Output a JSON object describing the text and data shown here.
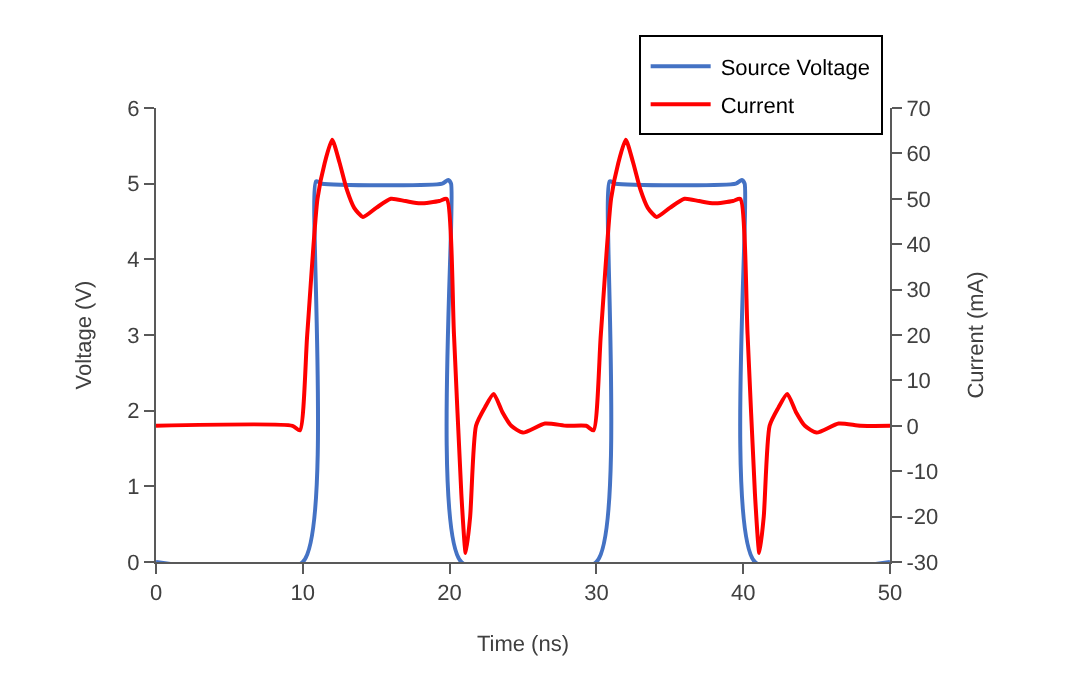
{
  "chart_data": {
    "type": "line",
    "xlabel": "Time (ns)",
    "ylabel": "Voltage (V)",
    "y2label": "Current (mA)",
    "xlim": [
      0,
      50
    ],
    "xticks": [
      0,
      10,
      20,
      30,
      40,
      50
    ],
    "ylim": [
      0,
      6
    ],
    "yticks": [
      0,
      1,
      2,
      3,
      4,
      5,
      6
    ],
    "y2lim": [
      -30,
      70
    ],
    "y2ticks": [
      -30,
      -20,
      -10,
      0,
      10,
      20,
      30,
      40,
      50,
      60,
      70
    ],
    "legend": "top right",
    "marker": "none",
    "line_style": "solid",
    "series": [
      {
        "name": "Source Voltage",
        "color": "#4472c4",
        "x": [
          0,
          10,
          10.9,
          11.3,
          19.5,
          19.9,
          20.1,
          20.8,
          30,
          30.9,
          31.3,
          39.5,
          39.9,
          40.1,
          40.8,
          50
        ],
        "values": [
          0,
          0,
          5.03,
          5.0,
          5.0,
          5.05,
          5.0,
          0,
          0,
          5.03,
          5.0,
          5.0,
          5.05,
          5.0,
          0,
          0
        ]
      },
      {
        "name": "Current",
        "color": "#ff0000",
        "axis": "y2",
        "x": [
          0,
          9.3,
          9.8,
          10.3,
          11,
          11.5,
          12,
          12.5,
          13,
          13.5,
          14.1,
          15,
          16,
          17,
          18,
          19.3,
          19.8,
          20.3,
          20.8,
          21.1,
          21.4,
          21.8,
          22.4,
          23,
          23.6,
          24.2,
          25,
          26.5,
          28,
          29.3,
          29.8,
          30.3,
          31,
          31.5,
          32,
          32.5,
          33,
          33.5,
          34.1,
          35,
          36,
          37,
          38,
          39.3,
          39.8,
          40.3,
          40.8,
          41.1,
          41.4,
          41.8,
          42.4,
          43,
          43.6,
          44.2,
          45,
          46.5,
          48,
          50
        ],
        "values": [
          0,
          0,
          -1,
          20,
          50,
          58,
          63,
          58,
          52,
          48,
          46,
          48,
          50,
          49.5,
          49,
          49.5,
          50,
          20,
          -15,
          -28,
          -20,
          0,
          4,
          7,
          3,
          0,
          -1.5,
          0.5,
          0,
          0,
          -1,
          20,
          50,
          58,
          63,
          58,
          52,
          48,
          46,
          48,
          50,
          49.5,
          49,
          49.5,
          50,
          20,
          -15,
          -28,
          -20,
          0,
          4,
          7,
          3,
          0,
          -1.5,
          0.5,
          0,
          0
        ]
      }
    ]
  }
}
